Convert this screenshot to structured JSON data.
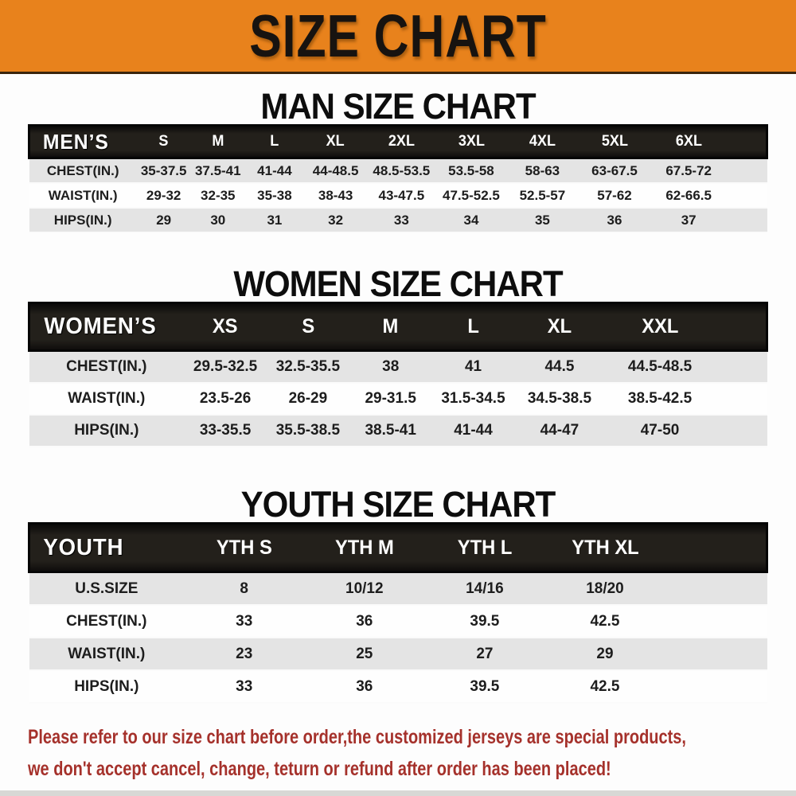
{
  "banner": {
    "title": "SIZE CHART",
    "bg_color": "#E8821C"
  },
  "sections": [
    {
      "title": "MAN SIZE CHART",
      "header_label": "MEN’S",
      "sizes": [
        "S",
        "M",
        "L",
        "XL",
        "2XL",
        "3XL",
        "4XL",
        "5XL",
        "6XL"
      ],
      "rows": [
        {
          "label": "CHEST(IN.)",
          "values": [
            "35-37.5",
            "37.5-41",
            "41-44",
            "44-48.5",
            "48.5-53.5",
            "53.5-58",
            "58-63",
            "63-67.5",
            "67.5-72"
          ]
        },
        {
          "label": "WAIST(IN.)",
          "values": [
            "29-32",
            "32-35",
            "35-38",
            "38-43",
            "43-47.5",
            "47.5-52.5",
            "52.5-57",
            "57-62",
            "62-66.5"
          ]
        },
        {
          "label": "HIPS(IN.)",
          "values": [
            "29",
            "30",
            "31",
            "32",
            "33",
            "34",
            "35",
            "36",
            "37"
          ]
        }
      ]
    },
    {
      "title": "WOMEN SIZE CHART",
      "header_label": "WOMEN’S",
      "sizes": [
        "XS",
        "S",
        "M",
        "L",
        "XL",
        "XXL"
      ],
      "rows": [
        {
          "label": "CHEST(IN.)",
          "values": [
            "29.5-32.5",
            "32.5-35.5",
            "38",
            "41",
            "44.5",
            "44.5-48.5"
          ]
        },
        {
          "label": "WAIST(IN.)",
          "values": [
            "23.5-26",
            "26-29",
            "29-31.5",
            "31.5-34.5",
            "34.5-38.5",
            "38.5-42.5"
          ]
        },
        {
          "label": "HIPS(IN.)",
          "values": [
            "33-35.5",
            "35.5-38.5",
            "38.5-41",
            "41-44",
            "44-47",
            "47-50"
          ]
        }
      ]
    },
    {
      "title": "YOUTH SIZE CHART",
      "header_label": "YOUTH",
      "sizes": [
        "YTH S",
        "YTH M",
        "YTH L",
        "YTH XL"
      ],
      "rows": [
        {
          "label": "U.S.SIZE",
          "values": [
            "8",
            "10/12",
            "14/16",
            "18/20"
          ]
        },
        {
          "label": "CHEST(IN.)",
          "values": [
            "33",
            "36",
            "39.5",
            "42.5"
          ]
        },
        {
          "label": "WAIST(IN.)",
          "values": [
            "23",
            "25",
            "27",
            "29"
          ]
        },
        {
          "label": "HIPS(IN.)",
          "values": [
            "33",
            "36",
            "39.5",
            "42.5"
          ]
        }
      ]
    }
  ],
  "footer": {
    "line1": "Please refer to our size chart before order,the customized jerseys are special products,",
    "line2": "we don't accept cancel, change, teturn or refund after order has been placed!",
    "text_color": "#A5312B"
  }
}
